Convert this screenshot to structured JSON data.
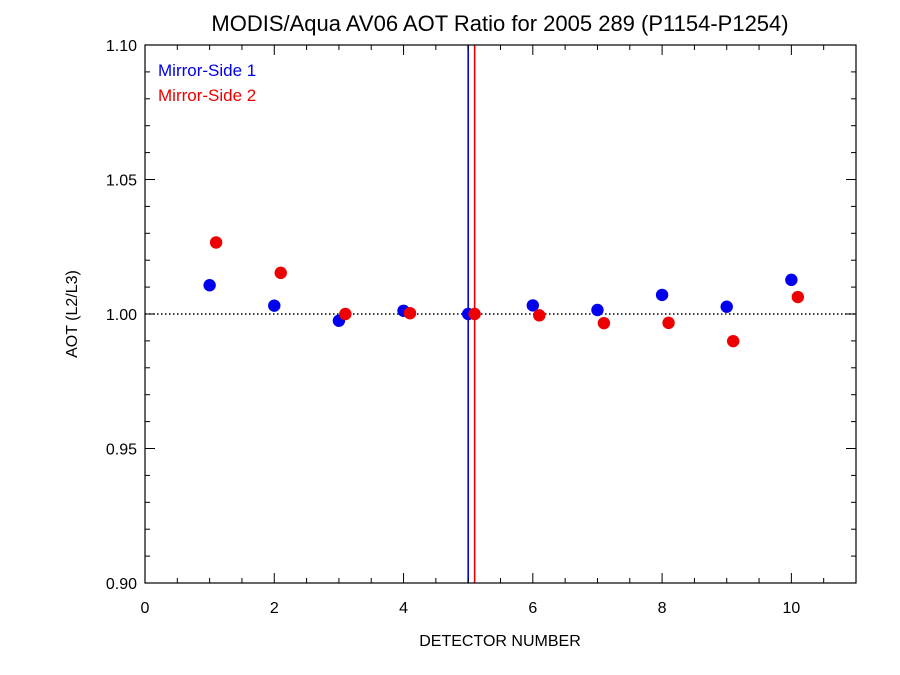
{
  "chart_data": {
    "type": "scatter",
    "title": "MODIS/Aqua AV06 AOT Ratio for 2005 289 (P1154-P1254)",
    "xlabel": "DETECTOR NUMBER",
    "ylabel": "AOT (L2/L3)",
    "xlim": [
      0,
      11
    ],
    "ylim": [
      0.9,
      1.1
    ],
    "x_ticks": [
      0,
      2,
      4,
      6,
      8,
      10
    ],
    "x_tick_labels": [
      "0",
      "2",
      "4",
      "6",
      "8",
      "10"
    ],
    "y_ticks": [
      0.9,
      0.95,
      1.0,
      1.05,
      1.1
    ],
    "y_tick_labels": [
      "0.90",
      "0.95",
      "1.00",
      "1.05",
      "1.10"
    ],
    "reference_line": {
      "y": 1.0,
      "style": "dotted"
    },
    "vertical_lines": [
      {
        "x": 5.0,
        "color": "#0000ee"
      },
      {
        "x": 5.1,
        "color": "#ee0000"
      }
    ],
    "legend_position": "top-left",
    "series": [
      {
        "name": "Mirror-Side 1",
        "color": "#0000ee",
        "x": [
          1,
          2,
          3,
          4,
          5,
          6,
          7,
          8,
          9,
          10
        ],
        "y": [
          1.0107,
          1.0031,
          0.9975,
          1.0012,
          1.0,
          1.0032,
          1.0015,
          1.0071,
          1.0027,
          1.0127
        ]
      },
      {
        "name": "Mirror-Side 2",
        "color": "#ee0000",
        "x": [
          1.1,
          2.1,
          3.1,
          4.1,
          5.1,
          6.1,
          7.1,
          8.1,
          9.1,
          10.1
        ],
        "y": [
          1.0266,
          1.0153,
          1.0,
          1.0003,
          1.0,
          0.9995,
          0.9966,
          0.9967,
          0.9899,
          1.0063
        ]
      }
    ]
  }
}
